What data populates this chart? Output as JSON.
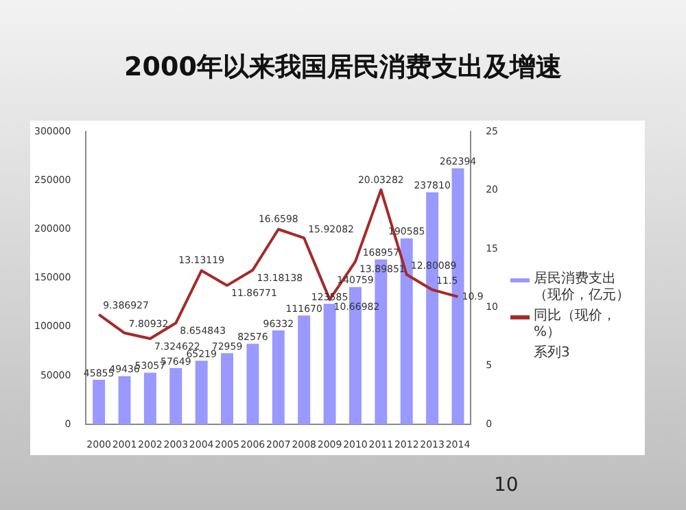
{
  "chart_data": {
    "type": "bar",
    "title": "2000年以来我国居民消费支出及增速",
    "categories": [
      "2000",
      "2001",
      "2002",
      "2003",
      "2004",
      "2005",
      "2006",
      "2007",
      "2008",
      "2009",
      "2010",
      "2011",
      "2012",
      "2013",
      "2014"
    ],
    "series": [
      {
        "name": "居民消费支出（现价，亿元）",
        "color": "#9999ff",
        "values": [
          45855,
          49436,
          53057,
          57649,
          65219,
          72959,
          82576,
          96332,
          111670,
          123585,
          140759,
          168957,
          190585,
          237810,
          262394
        ]
      },
      {
        "name": "同比（现价，%）",
        "type": "line",
        "axis": "y2",
        "color": "#a52a2a",
        "values": [
          9.386927,
          7.80932,
          7.324622,
          8.654843,
          13.13119,
          11.86771,
          13.18138,
          16.6598,
          15.92082,
          10.66982,
          13.89851,
          20.03282,
          12.80089,
          11.5,
          10.9
        ]
      },
      {
        "name": "系列3",
        "type": "line",
        "values": [
          null,
          null,
          null,
          null,
          null,
          null,
          null,
          null,
          null,
          null,
          null,
          null,
          null,
          null,
          null
        ]
      }
    ],
    "ylim": [
      0,
      300000
    ],
    "yticks": [
      0,
      50000,
      100000,
      150000,
      200000,
      250000,
      300000
    ],
    "y2lim": [
      0,
      25
    ],
    "y2ticks": [
      0,
      5,
      10,
      15,
      20,
      25
    ],
    "grid": false,
    "legend": "right",
    "marker": "none",
    "data_labels": true,
    "annotations": [
      "10"
    ]
  }
}
